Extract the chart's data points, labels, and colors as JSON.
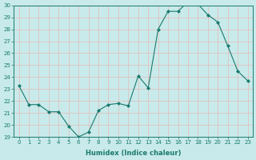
{
  "x": [
    0,
    1,
    2,
    3,
    4,
    5,
    6,
    7,
    8,
    9,
    10,
    11,
    12,
    13,
    14,
    15,
    16,
    17,
    18,
    19,
    20,
    21,
    22,
    23
  ],
  "y": [
    23.3,
    21.7,
    21.7,
    21.1,
    21.1,
    19.9,
    19.0,
    19.4,
    21.2,
    21.7,
    21.8,
    21.6,
    24.1,
    23.1,
    28.0,
    29.5,
    29.5,
    30.3,
    30.1,
    29.2,
    28.6,
    26.6,
    24.5,
    23.7
  ],
  "line_color": "#1a7a6e",
  "marker": "D",
  "marker_size": 2.0,
  "bg_color": "#c8eaea",
  "grid_color": "#e8b8b8",
  "axis_color": "#1a7a6e",
  "xlabel": "Humidex (Indice chaleur)",
  "ylim": [
    19,
    30
  ],
  "xlim_min": -0.5,
  "xlim_max": 23.5,
  "yticks": [
    19,
    20,
    21,
    22,
    23,
    24,
    25,
    26,
    27,
    28,
    29,
    30
  ],
  "xticks": [
    0,
    1,
    2,
    3,
    4,
    5,
    6,
    7,
    8,
    9,
    10,
    11,
    12,
    13,
    14,
    15,
    16,
    17,
    18,
    19,
    20,
    21,
    22,
    23
  ],
  "xtick_labels": [
    "0",
    "1",
    "2",
    "3",
    "4",
    "5",
    "6",
    "7",
    "8",
    "9",
    "10",
    "11",
    "12",
    "13",
    "14",
    "15",
    "16",
    "17",
    "18",
    "19",
    "20",
    "21",
    "22",
    "23"
  ],
  "font_color": "#1a7a6e",
  "xlabel_fontsize": 6.0,
  "tick_fontsize": 5.0,
  "linewidth": 0.8
}
